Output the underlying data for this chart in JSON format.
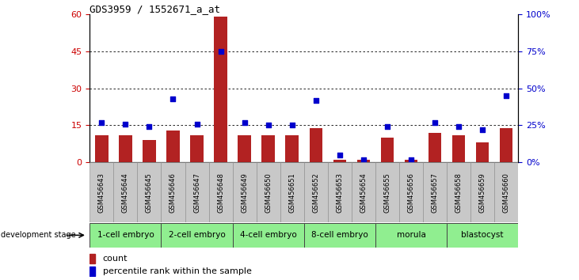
{
  "title": "GDS3959 / 1552671_a_at",
  "samples": [
    "GSM456643",
    "GSM456644",
    "GSM456645",
    "GSM456646",
    "GSM456647",
    "GSM456648",
    "GSM456649",
    "GSM456650",
    "GSM456651",
    "GSM456652",
    "GSM456653",
    "GSM456654",
    "GSM456655",
    "GSM456656",
    "GSM456657",
    "GSM456658",
    "GSM456659",
    "GSM456660"
  ],
  "counts": [
    11,
    11,
    9,
    13,
    11,
    59,
    11,
    11,
    11,
    14,
    1,
    1,
    10,
    1,
    12,
    11,
    8,
    14
  ],
  "percentile": [
    27,
    26,
    24,
    43,
    26,
    75,
    27,
    25,
    25,
    42,
    5,
    2,
    24,
    2,
    27,
    24,
    22,
    45
  ],
  "stages": [
    {
      "label": "1-cell embryo",
      "start": 0,
      "end": 3
    },
    {
      "label": "2-cell embryo",
      "start": 3,
      "end": 6
    },
    {
      "label": "4-cell embryo",
      "start": 6,
      "end": 9
    },
    {
      "label": "8-cell embryo",
      "start": 9,
      "end": 12
    },
    {
      "label": "morula",
      "start": 12,
      "end": 15
    },
    {
      "label": "blastocyst",
      "start": 15,
      "end": 18
    }
  ],
  "left_ylim": [
    0,
    60
  ],
  "right_ylim": [
    0,
    100
  ],
  "left_yticks": [
    0,
    15,
    30,
    45,
    60
  ],
  "right_yticks": [
    0,
    25,
    50,
    75,
    100
  ],
  "right_yticklabels": [
    "0%",
    "25%",
    "50%",
    "75%",
    "100%"
  ],
  "bar_color": "#B22222",
  "dot_color": "#0000CC",
  "bg_plot": "#FFFFFF",
  "sample_bg": "#C8C8C8",
  "stage_color": "#90EE90",
  "title_color": "#000000",
  "left_tick_color": "#CC0000",
  "right_tick_color": "#0000CC",
  "legend_count_color": "#B22222",
  "legend_pct_color": "#0000CC",
  "gridline_yticks": [
    15,
    30,
    45
  ]
}
